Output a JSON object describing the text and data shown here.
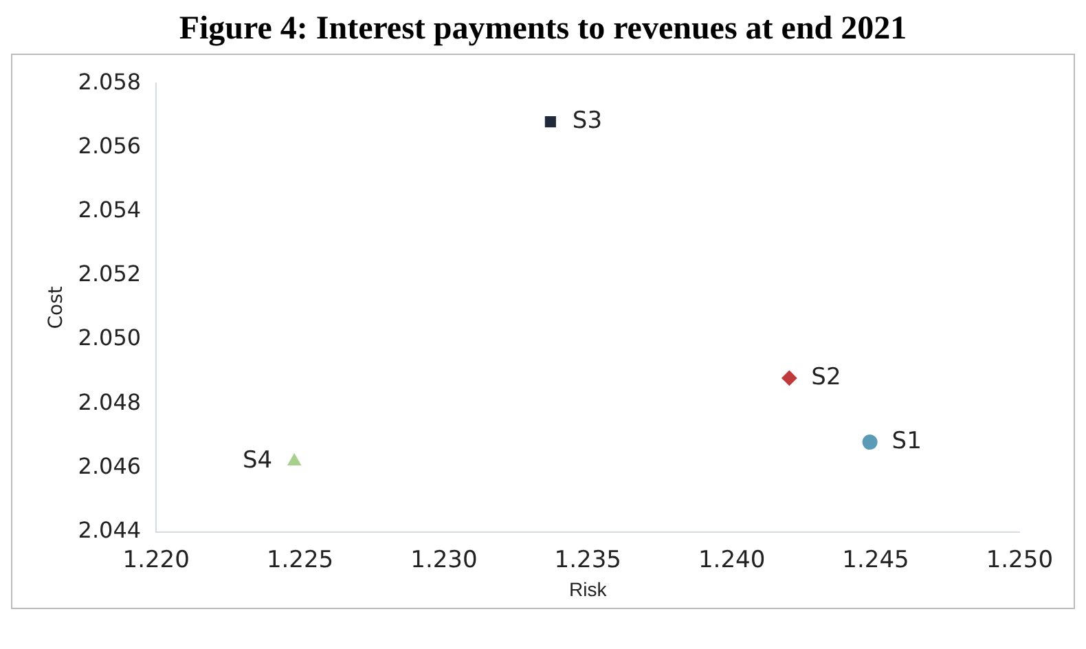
{
  "chart_data": {
    "type": "scatter",
    "title": "Figure 4: Interest payments to revenues at end 2021",
    "xlabel": "Risk",
    "ylabel": "Cost",
    "xlim": [
      1.22,
      1.25
    ],
    "xticks": [
      {
        "value": 1.22,
        "label": "1.220"
      },
      {
        "value": 1.225,
        "label": "1.225"
      },
      {
        "value": 1.23,
        "label": "1.230"
      },
      {
        "value": 1.235,
        "label": "1.235"
      },
      {
        "value": 1.24,
        "label": "1.240"
      },
      {
        "value": 1.245,
        "label": "1.245"
      },
      {
        "value": 1.25,
        "label": "1.250"
      }
    ],
    "ylim": [
      2.044,
      2.058
    ],
    "yticks": [
      {
        "value": 2.044,
        "label": "2.044"
      },
      {
        "value": 2.046,
        "label": "2.046"
      },
      {
        "value": 2.048,
        "label": "2.048"
      },
      {
        "value": 2.05,
        "label": "2.050"
      },
      {
        "value": 2.052,
        "label": "2.052"
      },
      {
        "value": 2.054,
        "label": "2.054"
      },
      {
        "value": 2.056,
        "label": "2.056"
      },
      {
        "value": 2.058,
        "label": "2.058"
      }
    ],
    "grid": false,
    "legend": false,
    "series": [
      {
        "name": "S1",
        "color": "#5b9bb5",
        "marker": "circle",
        "x": [
          1.2448
        ],
        "values": [
          2.0468
        ]
      },
      {
        "name": "S2",
        "color": "#c0393b",
        "marker": "diamond",
        "x": [
          1.242
        ],
        "values": [
          2.0488
        ]
      },
      {
        "name": "S3",
        "color": "#1f2a3a",
        "marker": "square",
        "x": [
          1.2337
        ],
        "values": [
          2.0568
        ]
      },
      {
        "name": "S4",
        "color": "#a8d08d",
        "marker": "triangle",
        "x": [
          1.2248
        ],
        "values": [
          2.0462
        ]
      }
    ]
  }
}
